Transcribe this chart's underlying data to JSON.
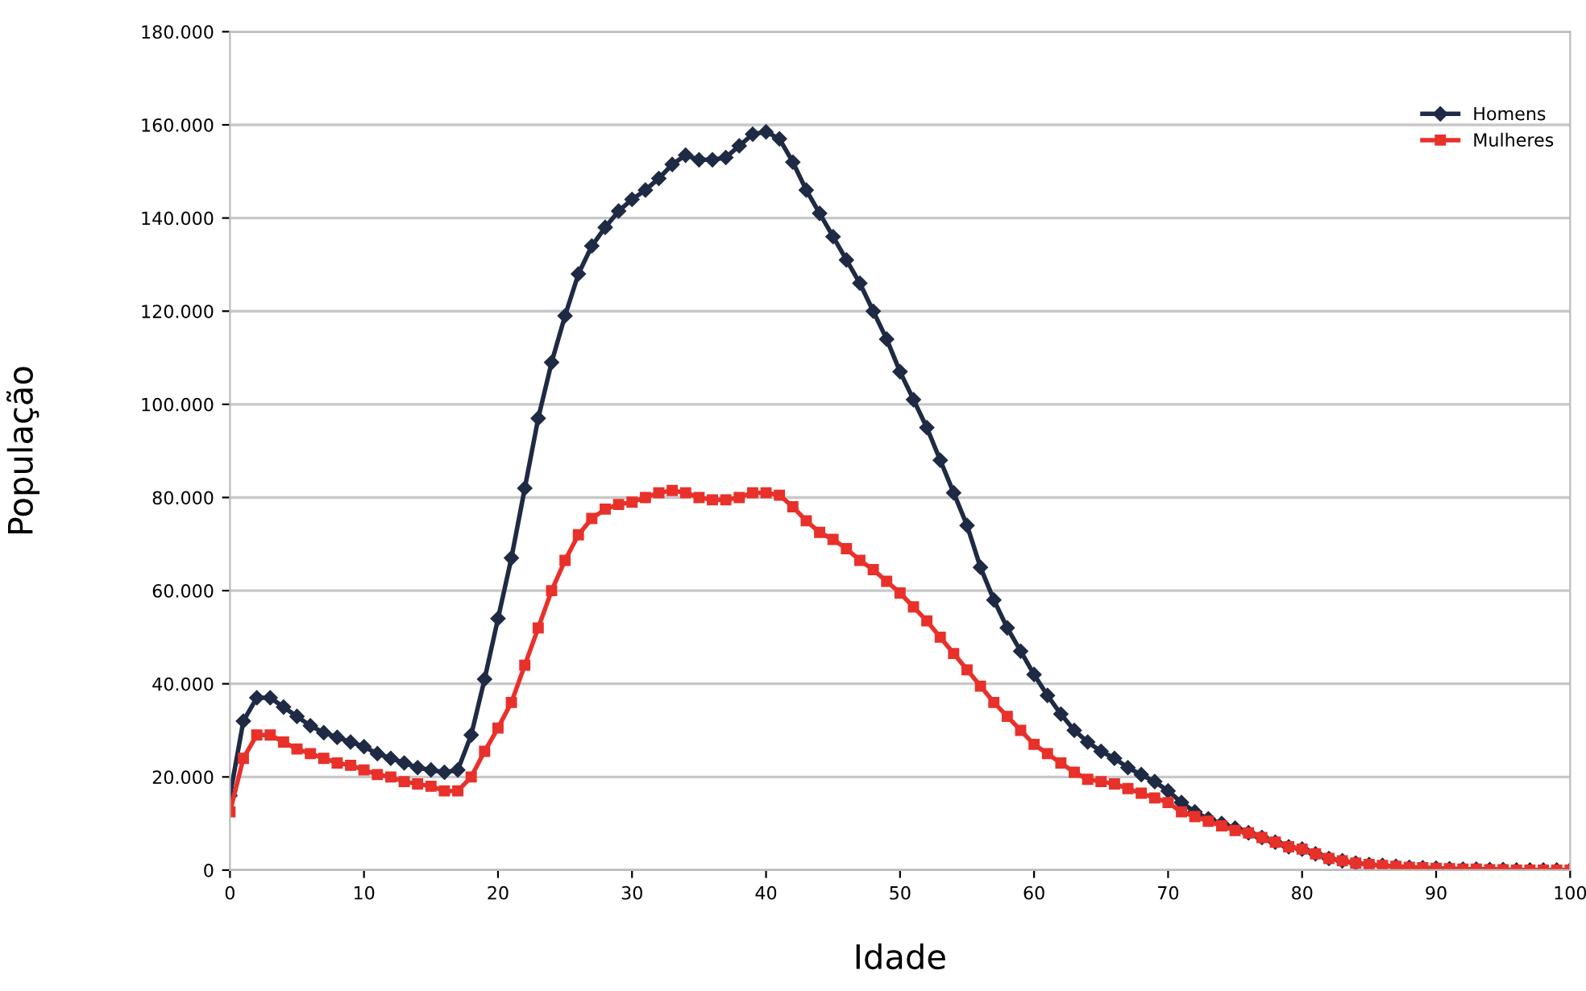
{
  "chart_data": {
    "type": "line",
    "xlabel": "Idade",
    "ylabel": "População",
    "x": [
      0,
      1,
      2,
      3,
      4,
      5,
      6,
      7,
      8,
      9,
      10,
      11,
      12,
      13,
      14,
      15,
      16,
      17,
      18,
      19,
      20,
      21,
      22,
      23,
      24,
      25,
      26,
      27,
      28,
      29,
      30,
      31,
      32,
      33,
      34,
      35,
      36,
      37,
      38,
      39,
      40,
      41,
      42,
      43,
      44,
      45,
      46,
      47,
      48,
      49,
      50,
      51,
      52,
      53,
      54,
      55,
      56,
      57,
      58,
      59,
      60,
      61,
      62,
      63,
      64,
      65,
      66,
      67,
      68,
      69,
      70,
      71,
      72,
      73,
      74,
      75,
      76,
      77,
      78,
      79,
      80,
      81,
      82,
      83,
      84,
      85,
      86,
      87,
      88,
      89,
      90,
      91,
      92,
      93,
      94,
      95,
      96,
      97,
      98,
      99,
      100
    ],
    "series": [
      {
        "name": "Homens",
        "color": "#1f2a44",
        "marker": "diamond",
        "values": [
          16000,
          32000,
          37000,
          37000,
          35000,
          33000,
          31000,
          29500,
          28500,
          27500,
          26500,
          25000,
          24000,
          23000,
          22000,
          21500,
          21000,
          21500,
          29000,
          41000,
          54000,
          67000,
          82000,
          97000,
          109000,
          119000,
          128000,
          134000,
          138000,
          141500,
          144000,
          146000,
          148500,
          151500,
          153500,
          152500,
          152500,
          153000,
          155500,
          158000,
          158500,
          157000,
          152000,
          146000,
          141000,
          136000,
          131000,
          126000,
          120000,
          114000,
          107000,
          101000,
          95000,
          88000,
          81000,
          74000,
          65000,
          58000,
          52000,
          47000,
          42000,
          37500,
          33500,
          30000,
          27500,
          25500,
          24000,
          22000,
          20500,
          19000,
          17000,
          14500,
          12500,
          11000,
          10000,
          9000,
          8000,
          7000,
          6000,
          5000,
          4500,
          3500,
          2500,
          2000,
          1500,
          1200,
          1000,
          800,
          600,
          500,
          400,
          300,
          200,
          200,
          100,
          100,
          0,
          0,
          0,
          0,
          0
        ]
      },
      {
        "name": "Mulheres",
        "color": "#e8312a",
        "marker": "square",
        "values": [
          12500,
          24000,
          29000,
          29000,
          27500,
          26000,
          25000,
          24000,
          23000,
          22500,
          21500,
          20500,
          20000,
          19000,
          18500,
          18000,
          17000,
          17000,
          20000,
          25500,
          30500,
          36000,
          44000,
          52000,
          60000,
          66500,
          72000,
          75500,
          77500,
          78500,
          79000,
          80000,
          81000,
          81500,
          81000,
          80000,
          79500,
          79500,
          80000,
          81000,
          81000,
          80500,
          78000,
          75000,
          72500,
          71000,
          69000,
          66500,
          64500,
          62000,
          59500,
          56500,
          53500,
          50000,
          46500,
          43000,
          39500,
          36000,
          33000,
          30000,
          27000,
          25000,
          23000,
          21000,
          19500,
          19000,
          18500,
          17500,
          16500,
          15500,
          14500,
          12500,
          11500,
          10500,
          9500,
          8500,
          8000,
          7000,
          6000,
          5000,
          4500,
          3500,
          2500,
          2000,
          1500,
          1200,
          1000,
          800,
          600,
          500,
          400,
          300,
          200,
          200,
          100,
          100,
          0,
          0,
          0,
          0,
          0
        ]
      }
    ],
    "xlim": [
      0,
      100
    ],
    "xticks": [
      0,
      10,
      20,
      30,
      40,
      50,
      60,
      70,
      80,
      90,
      100
    ],
    "ylim": [
      0,
      180000
    ],
    "yticks": [
      {
        "value": 0,
        "label": "0"
      },
      {
        "value": 20000,
        "label": "20.000"
      },
      {
        "value": 40000,
        "label": "40.000"
      },
      {
        "value": 60000,
        "label": "60.000"
      },
      {
        "value": 80000,
        "label": "80.000"
      },
      {
        "value": 100000,
        "label": "100.000"
      },
      {
        "value": 120000,
        "label": "120.000"
      },
      {
        "value": 140000,
        "label": "140.000"
      },
      {
        "value": 160000,
        "label": "160.000"
      },
      {
        "value": 180000,
        "label": "180.000"
      }
    ],
    "grid": "y",
    "legend": "top right",
    "line_style": "solid"
  }
}
